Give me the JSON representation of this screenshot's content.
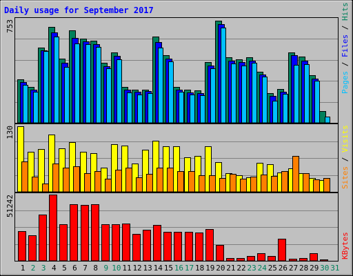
{
  "title": "Daily usage for September 2017",
  "right_labels": {
    "top": [
      {
        "text": "Pages",
        "color": "#00c0ff"
      },
      {
        "text": " / ",
        "color": "#000000"
      },
      {
        "text": "Files",
        "color": "#0000ff"
      },
      {
        "text": " / ",
        "color": "#000000"
      },
      {
        "text": "Hits",
        "color": "#00805c"
      }
    ],
    "mid": [
      {
        "text": "Sites",
        "color": "#ff8000"
      },
      {
        "text": " / ",
        "color": "#000000"
      },
      {
        "text": "Visits",
        "color": "#ffff00"
      }
    ],
    "bottom": [
      {
        "text": "KBytes",
        "color": "#ff0000"
      }
    ]
  },
  "colors": {
    "background": "#c0c0c0",
    "hits": "#00805c",
    "files": "#0000ff",
    "pages": "#00c0ff",
    "visits": "#ffff00",
    "sites": "#ff8000",
    "kbytes": "#ff0000",
    "title": "#0000ff",
    "weekend_day": "#00805c"
  },
  "chart_data": [
    {
      "type": "bar",
      "panel": "hits-files-pages",
      "y_max_label": "753",
      "ylim": [
        0,
        753
      ],
      "categories": [
        "1",
        "2",
        "3",
        "4",
        "5",
        "6",
        "7",
        "8",
        "9",
        "10",
        "11",
        "12",
        "13",
        "14",
        "15",
        "16",
        "17",
        "18",
        "19",
        "20",
        "21",
        "22",
        "23",
        "24",
        "25",
        "26",
        "27",
        "28",
        "29",
        "30",
        "31"
      ],
      "series": [
        {
          "name": "Hits",
          "values": [
            318,
            260,
            545,
            700,
            465,
            675,
            610,
            595,
            437,
            510,
            260,
            243,
            243,
            630,
            490,
            260,
            240,
            235,
            440,
            745,
            475,
            460,
            475,
            370,
            215,
            245,
            510,
            480,
            345,
            85,
            0
          ]
        },
        {
          "name": "Files",
          "values": [
            295,
            240,
            527,
            660,
            438,
            618,
            590,
            570,
            410,
            485,
            240,
            225,
            230,
            585,
            465,
            240,
            220,
            215,
            415,
            719,
            452,
            440,
            452,
            350,
            195,
            225,
            490,
            450,
            323,
            0,
            0
          ]
        },
        {
          "name": "Pages",
          "values": [
            275,
            225,
            520,
            628,
            407,
            575,
            570,
            552,
            395,
            462,
            220,
            207,
            215,
            547,
            445,
            225,
            205,
            200,
            395,
            695,
            432,
            417,
            435,
            335,
            160,
            210,
            420,
            425,
            305,
            45,
            0
          ]
        }
      ]
    },
    {
      "type": "bar",
      "panel": "visits-sites",
      "y_max_label": "130",
      "ylim": [
        0,
        130
      ],
      "categories": [
        "1",
        "2",
        "3",
        "4",
        "5",
        "6",
        "7",
        "8",
        "9",
        "10",
        "11",
        "12",
        "13",
        "14",
        "15",
        "16",
        "17",
        "18",
        "19",
        "20",
        "21",
        "22",
        "23",
        "24",
        "25",
        "26",
        "27",
        "28",
        "29",
        "30",
        "31"
      ],
      "series": [
        {
          "name": "Visits",
          "values": [
            128,
            78,
            84,
            112,
            85,
            97,
            79,
            76,
            48,
            94,
            91,
            55,
            83,
            100,
            90,
            89,
            68,
            70,
            90,
            58,
            37,
            33,
            28,
            57,
            54,
            38,
            46,
            37,
            27,
            23,
            0
          ]
        },
        {
          "name": "Sites",
          "values": [
            60,
            30,
            16,
            55,
            47,
            50,
            36,
            41,
            26,
            44,
            48,
            28,
            35,
            47,
            48,
            41,
            40,
            32,
            33,
            27,
            35,
            26,
            30,
            34,
            31,
            40,
            70,
            36,
            25,
            27,
            0
          ]
        }
      ]
    },
    {
      "type": "bar",
      "panel": "kbytes",
      "y_max_label": "51242",
      "ylim": [
        0,
        51242
      ],
      "categories": [
        "1",
        "2",
        "3",
        "4",
        "5",
        "6",
        "7",
        "8",
        "9",
        "10",
        "11",
        "12",
        "13",
        "14",
        "15",
        "16",
        "17",
        "18",
        "19",
        "20",
        "21",
        "22",
        "23",
        "24",
        "25",
        "26",
        "27",
        "28",
        "29",
        "30",
        "31"
      ],
      "series": [
        {
          "name": "KBytes",
          "values": [
            23100,
            20000,
            35500,
            51200,
            28400,
            44000,
            43500,
            44000,
            28300,
            28400,
            29000,
            21000,
            24000,
            28000,
            22500,
            22200,
            22500,
            21800,
            24800,
            12400,
            2400,
            2000,
            3500,
            6000,
            3900,
            17300,
            1400,
            2200,
            5700,
            1000,
            0
          ]
        }
      ]
    }
  ],
  "x_axis": {
    "labels": [
      "1",
      "2",
      "3",
      "4",
      "5",
      "6",
      "7",
      "8",
      "9",
      "10",
      "11",
      "12",
      "13",
      "14",
      "15",
      "16",
      "17",
      "18",
      "19",
      "20",
      "21",
      "22",
      "23",
      "24",
      "25",
      "26",
      "27",
      "28",
      "29",
      "30",
      "31"
    ],
    "weekend_days": [
      "2",
      "3",
      "9",
      "10",
      "16",
      "17",
      "23",
      "24",
      "30",
      "31"
    ]
  }
}
